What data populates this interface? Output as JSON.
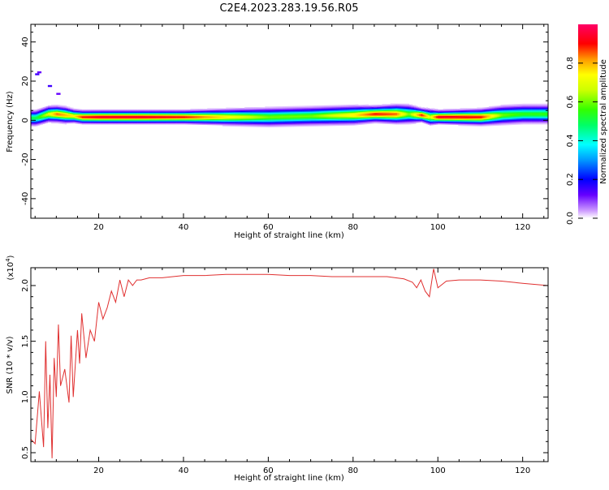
{
  "title": "C2E4.2023.283.19.56.R05",
  "chart_data": [
    {
      "type": "heatmap",
      "xlabel": "Height of straight line (km)",
      "ylabel": "Frequency (Hz)",
      "xlim": [
        4,
        126
      ],
      "ylim": [
        -50,
        49
      ],
      "xticks": [
        20,
        40,
        60,
        80,
        100,
        120
      ],
      "yticks": [
        -40,
        -20,
        0,
        20,
        40
      ],
      "colorbar": {
        "label": "Normalized spectral amplitude",
        "range": [
          0.0,
          1.0
        ],
        "ticks": [
          "0.0",
          "0.2",
          "0.4",
          "0.6",
          "0.8"
        ],
        "colors": [
          "#ffffff",
          "#cc99ff",
          "#6600ff",
          "#0000ff",
          "#0099ff",
          "#00ffff",
          "#00ff66",
          "#33ff00",
          "#ccff00",
          "#ffff00",
          "#ff9900",
          "#ff0000",
          "#ff0066"
        ]
      },
      "ridge": {
        "x": [
          5,
          8,
          10,
          12,
          14,
          16,
          20,
          30,
          40,
          50,
          60,
          70,
          80,
          85,
          90,
          93,
          96,
          98,
          100,
          110,
          115,
          120,
          126
        ],
        "y": [
          1,
          3,
          3,
          2.5,
          2,
          1.5,
          1.5,
          1.5,
          1.5,
          1.5,
          1.5,
          2,
          2.5,
          3,
          3,
          3,
          2.5,
          1.5,
          1.5,
          1.5,
          2.5,
          3,
          3
        ],
        "amp": [
          0.5,
          0.7,
          0.85,
          0.8,
          0.75,
          0.9,
          0.95,
          0.95,
          0.9,
          0.75,
          0.6,
          0.6,
          0.75,
          0.9,
          0.85,
          0.6,
          0.9,
          0.7,
          0.95,
          0.9,
          0.6,
          0.55,
          0.55
        ],
        "half_width": [
          3,
          3,
          3,
          3,
          2.5,
          2.5,
          2.5,
          2.5,
          2.5,
          3,
          3.5,
          3.5,
          3.5,
          3,
          3.5,
          3.5,
          2.5,
          3,
          2.5,
          3,
          3.5,
          3.5,
          3.5
        ]
      },
      "speckles": [
        {
          "x": 5,
          "y": 23,
          "amp": 0.15
        },
        {
          "x": 5.5,
          "y": 24,
          "amp": 0.12
        },
        {
          "x": 8,
          "y": 17,
          "amp": 0.15
        },
        {
          "x": 10,
          "y": 13,
          "amp": 0.12
        }
      ]
    },
    {
      "type": "line",
      "xlabel": "Height of straight line (km)",
      "ylabel": "SNR (10 * v/v)",
      "y_multiplier": "(x10",
      "y_multiplier_exp": "4",
      "xlim": [
        4,
        126
      ],
      "ylim": [
        0.42,
        2.16
      ],
      "xticks": [
        20,
        40,
        60,
        80,
        100,
        120
      ],
      "yticks": [
        0.5,
        1.0,
        1.5,
        2.0
      ],
      "ytick_labels": [
        "0.5",
        "1.0",
        "1.5",
        "2.0"
      ],
      "color": "#e03030",
      "series": [
        {
          "x": [
            4,
            5,
            6,
            7,
            7.5,
            8,
            8.5,
            9,
            9.5,
            10,
            10.5,
            11,
            12,
            13,
            13.5,
            14,
            15,
            15.5,
            16,
            17,
            18,
            19,
            20,
            21,
            22,
            23,
            24,
            25,
            26,
            27,
            28,
            29,
            30,
            32,
            35,
            40,
            45,
            50,
            55,
            60,
            65,
            70,
            75,
            80,
            85,
            88,
            90,
            92,
            94,
            95,
            96,
            97,
            98,
            99,
            100,
            102,
            105,
            110,
            115,
            120,
            123,
            126
          ],
          "y": [
            0.62,
            0.58,
            1.05,
            0.55,
            1.5,
            0.72,
            1.2,
            0.45,
            1.35,
            1.0,
            1.65,
            1.1,
            1.25,
            0.95,
            1.55,
            1.0,
            1.6,
            1.3,
            1.75,
            1.35,
            1.6,
            1.5,
            1.85,
            1.7,
            1.8,
            1.95,
            1.85,
            2.05,
            1.9,
            2.05,
            2.0,
            2.05,
            2.05,
            2.07,
            2.07,
            2.09,
            2.09,
            2.1,
            2.1,
            2.1,
            2.09,
            2.09,
            2.08,
            2.08,
            2.08,
            2.08,
            2.07,
            2.06,
            2.03,
            1.98,
            2.05,
            1.95,
            1.9,
            2.15,
            1.98,
            2.04,
            2.05,
            2.05,
            2.04,
            2.02,
            2.01,
            2.0
          ]
        }
      ]
    }
  ]
}
